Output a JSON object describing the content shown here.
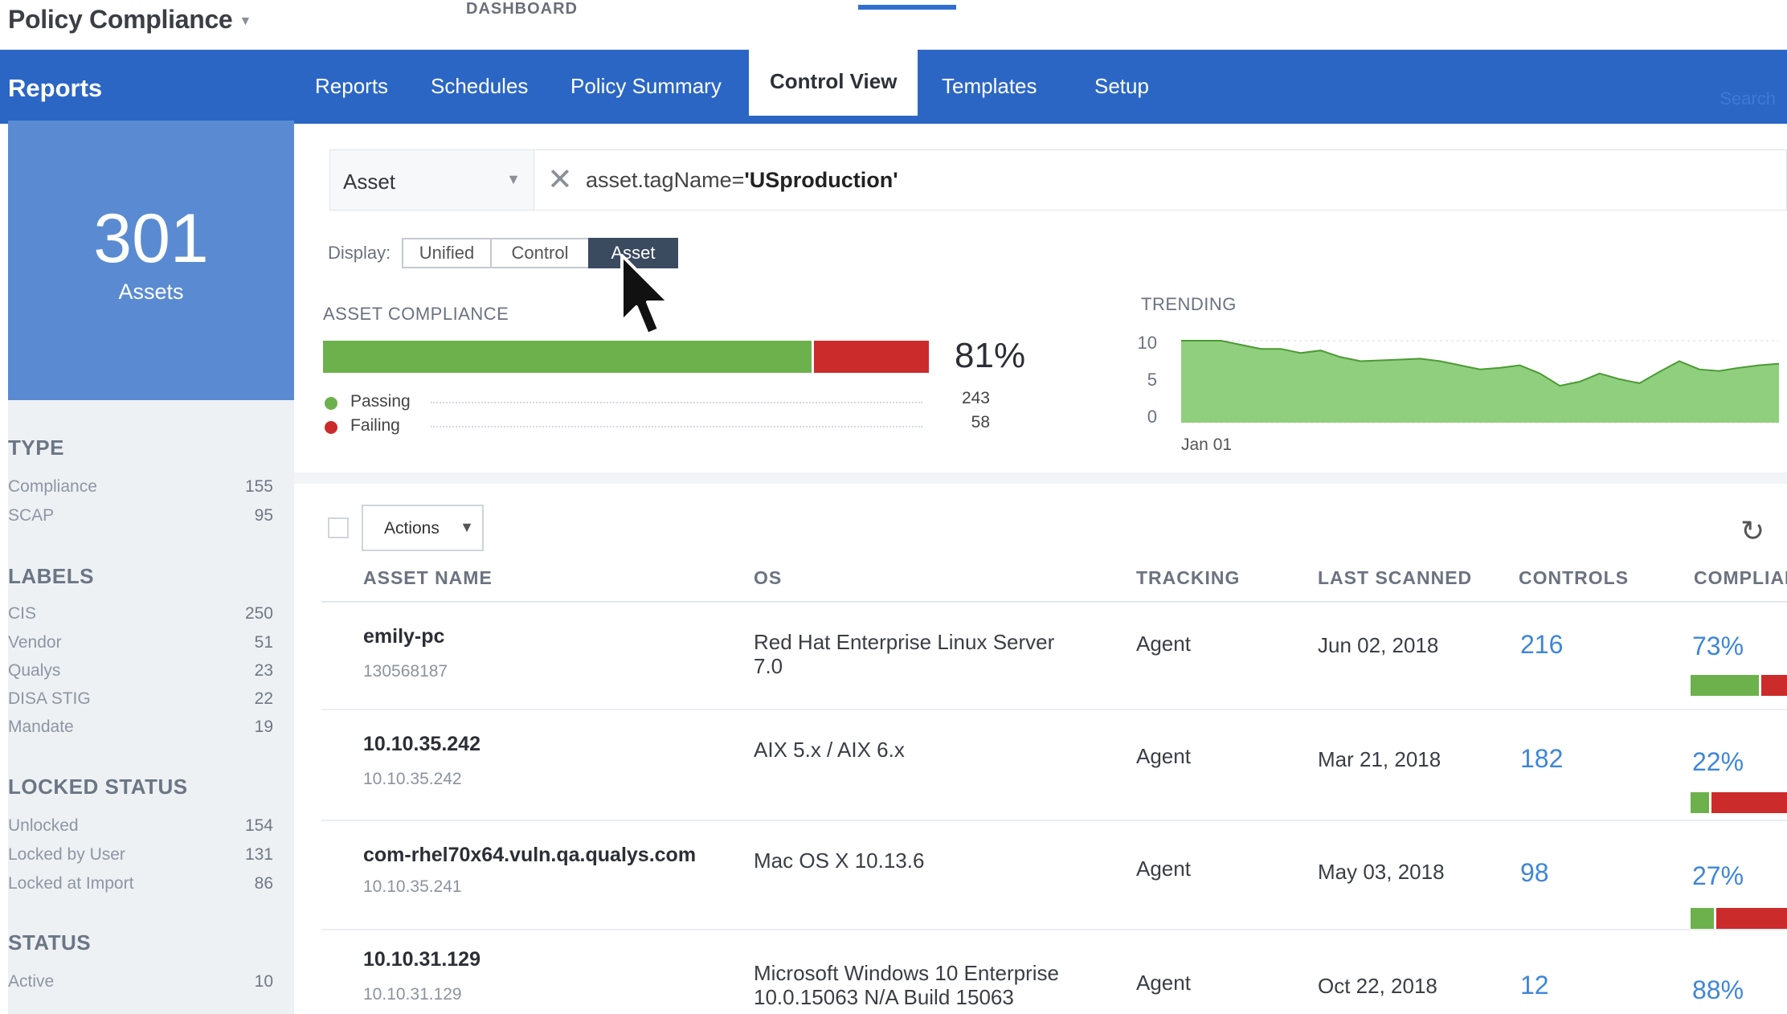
{
  "app": {
    "title": "Policy Compliance",
    "top_nav_label": "DASHBOARD"
  },
  "nav": {
    "section": "Reports",
    "tabs": [
      "Reports",
      "Schedules",
      "Policy Summary",
      "Control View",
      "Templates",
      "Setup"
    ],
    "active_tab": "Control View",
    "search_label": "Search"
  },
  "summary": {
    "count": "301",
    "label": "Assets"
  },
  "sidebar": {
    "groups": [
      {
        "title": "TYPE",
        "items": [
          {
            "label": "Compliance",
            "count": "155"
          },
          {
            "label": "SCAP",
            "count": "95"
          }
        ]
      },
      {
        "title": "LABELS",
        "items": [
          {
            "label": "CIS",
            "count": "250"
          },
          {
            "label": "Vendor",
            "count": "51"
          },
          {
            "label": "Qualys",
            "count": "23"
          },
          {
            "label": "DISA STIG",
            "count": "22"
          },
          {
            "label": "Mandate",
            "count": "19"
          }
        ]
      },
      {
        "title": "LOCKED STATUS",
        "items": [
          {
            "label": "Unlocked",
            "count": "154"
          },
          {
            "label": "Locked by User",
            "count": "131"
          },
          {
            "label": "Locked at Import",
            "count": "86"
          }
        ]
      },
      {
        "title": "STATUS",
        "items": [
          {
            "label": "Active",
            "count": "10"
          }
        ]
      }
    ]
  },
  "filter": {
    "field": "Asset",
    "query_prefix": "asset.tagName=",
    "query_value": "'USproduction'"
  },
  "display": {
    "label": "Display:",
    "options": [
      "Unified",
      "Control",
      "Asset"
    ],
    "selected": "Asset"
  },
  "compliance": {
    "title": "ASSET COMPLIANCE",
    "percent": "81%",
    "pass_fraction": 0.81,
    "passing_label": "Passing",
    "passing_count": "243",
    "failing_label": "Failing",
    "failing_count": "58",
    "pass_color": "#6db14c",
    "fail_color": "#cc2b2b"
  },
  "trending": {
    "title": "TRENDING",
    "y_ticks": [
      "10",
      "5",
      "0"
    ],
    "x_label": "Jan 01",
    "values": [
      10,
      10,
      10,
      9.5,
      9,
      9,
      8.5,
      8.8,
      8,
      7.5,
      7.6,
      7.7,
      7.8,
      7.5,
      7,
      6.5,
      6.7,
      7,
      6,
      4.5,
      5,
      6,
      5.3,
      4.8,
      6.2,
      7.5,
      6.5,
      6.3,
      6.7,
      7.0,
      7.2
    ]
  },
  "table": {
    "actions_label": "Actions",
    "columns": [
      "ASSET NAME",
      "OS",
      "TRACKING",
      "LAST SCANNED",
      "CONTROLS",
      "COMPLIANCE"
    ],
    "rows": [
      {
        "name": "emily-pc",
        "sub": "130568187",
        "os_line1": "Red Hat Enterprise Linux Server",
        "os_line2": "7.0",
        "tracking": "Agent",
        "last_scanned": "Jun 02, 2018",
        "controls": "216",
        "compliance": "73%",
        "pass_fraction": 0.73
      },
      {
        "name": "10.10.35.242",
        "sub": "10.10.35.242",
        "os_line1": "AIX 5.x / AIX 6.x",
        "os_line2": "",
        "tracking": "Agent",
        "last_scanned": "Mar 21, 2018",
        "controls": "182",
        "compliance": "22%",
        "pass_fraction": 0.22
      },
      {
        "name": "com-rhel70x64.vuln.qa.qualys.com",
        "sub": "10.10.35.241",
        "os_line1": "Mac OS X 10.13.6",
        "os_line2": "",
        "tracking": "Agent",
        "last_scanned": "May 03, 2018",
        "controls": "98",
        "compliance": "27%",
        "pass_fraction": 0.27
      },
      {
        "name": "10.10.31.129",
        "sub": "10.10.31.129",
        "os_line1": "Microsoft Windows 10 Enterprise",
        "os_line2": "10.0.15063 N/A Build 15063",
        "tracking": "Agent",
        "last_scanned": "Oct 22, 2018",
        "controls": "12",
        "compliance": "88%",
        "pass_fraction": 0.88
      }
    ]
  },
  "icons": {
    "clear": "close-icon",
    "refresh": "refresh-icon",
    "cursor": "mouse-pointer-icon",
    "dropdown": "chevron-down-icon"
  }
}
